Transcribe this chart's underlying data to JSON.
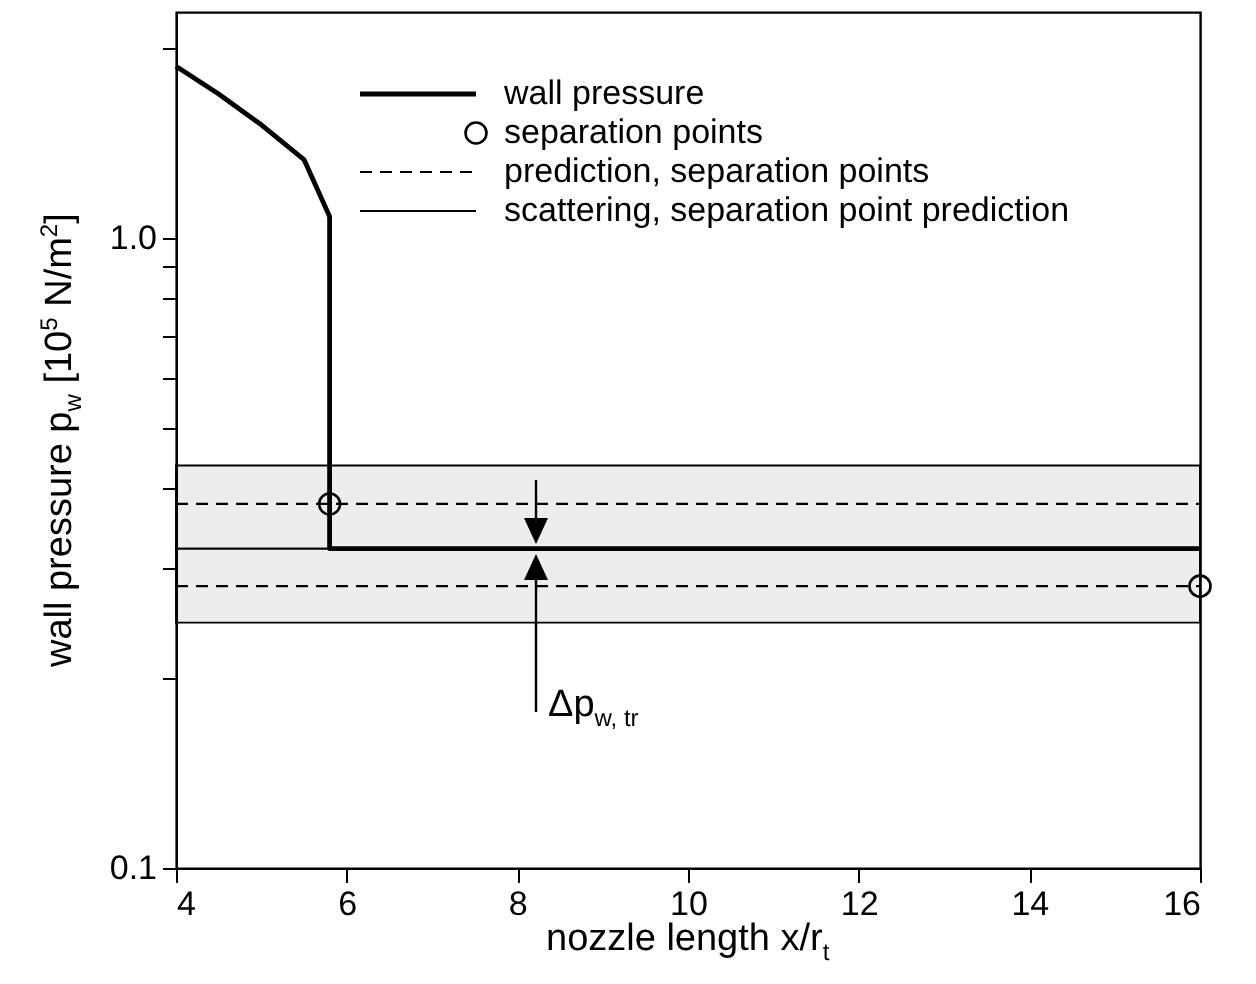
{
  "chart_data": {
    "type": "line",
    "xlabel": "nozzle length x/r$_{t}$",
    "ylabel": "wall pressure p$_{w}$ [10$^{5}$ N/m$^{2}$]",
    "xlim": [
      4,
      16
    ],
    "xticks": [
      4,
      6,
      8,
      10,
      12,
      14,
      16
    ],
    "ylim": [
      0.1,
      2.28
    ],
    "yticks": [
      0.1,
      {
        "value": 0.2,
        "label": null
      },
      {
        "value": 0.3,
        "label": null
      },
      {
        "value": 0.4,
        "label": null
      },
      {
        "value": 0.5,
        "label": null
      },
      {
        "value": 0.6,
        "label": null
      },
      {
        "value": 0.7,
        "label": null
      },
      {
        "value": 0.8,
        "label": null
      },
      {
        "value": 0.9,
        "label": null
      },
      {
        "value": 1,
        "label": "1.0"
      },
      {
        "value": 2,
        "label": null
      }
    ],
    "log": "y",
    "legend": "top right",
    "series": [
      {
        "name": "wall pressure",
        "line_style": "solid",
        "color": "#000000",
        "x": [
          4,
          4.5,
          5,
          5.5,
          5.8,
          5.8,
          16
        ],
        "values": [
          1.87,
          1.69,
          1.51,
          1.33,
          1.08,
          0.321,
          0.321
        ]
      },
      {
        "name": "separation points",
        "type": "scatter",
        "marker": "circle",
        "color": "#000000",
        "x": [
          5.8,
          16
        ],
        "values": [
          0.378,
          0.28
        ]
      },
      {
        "name": "prediction, separation points",
        "line_style": "dashed",
        "color": "#000000",
        "x": [
          4,
          16
        ],
        "values": [
          0.378,
          0.378
        ]
      },
      {
        "line_style": "dashed",
        "color": "#000000",
        "x": [
          4,
          16
        ],
        "values": [
          0.28,
          0.28
        ]
      }
    ],
    "bands": [
      {
        "axis": "y",
        "from": 0.321,
        "to": 0.435,
        "label": "scattering, separation point prediction",
        "color": "#000000"
      },
      {
        "axis": "y",
        "from": 0.245,
        "to": 0.321,
        "color": "#000000"
      }
    ],
    "annotations": [
      "Δp$_{w, tr}$"
    ]
  }
}
